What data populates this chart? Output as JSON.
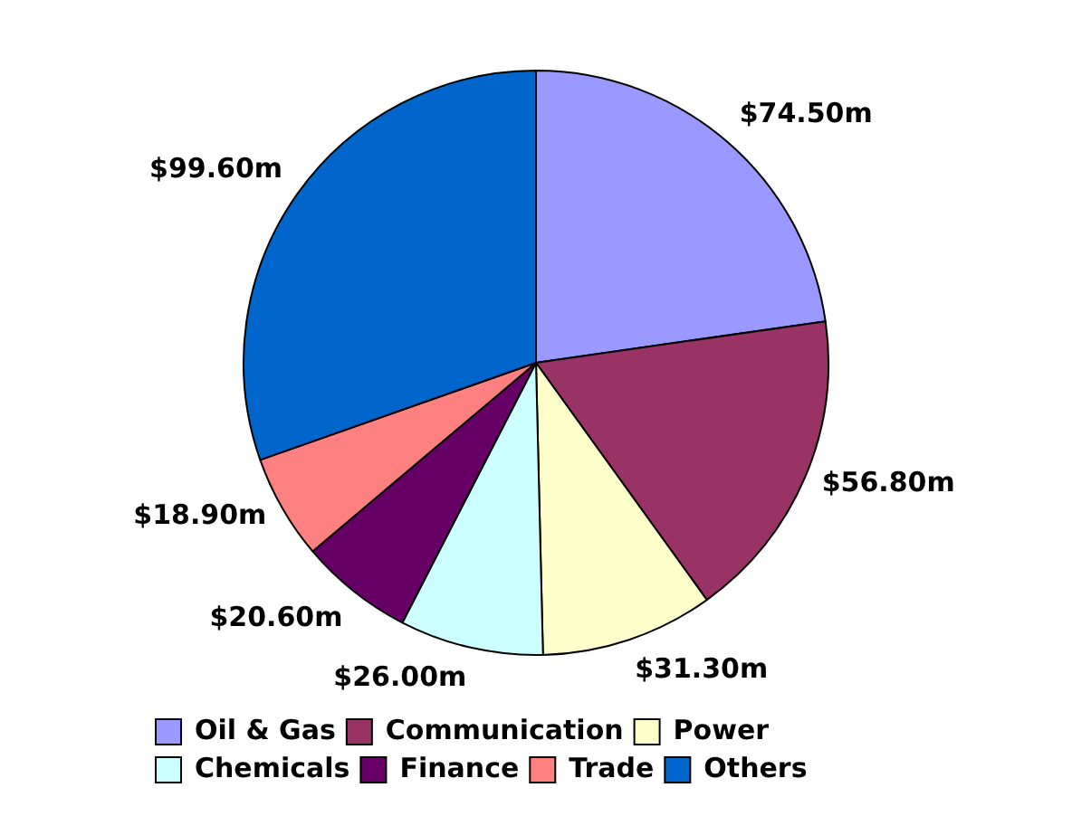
{
  "chart_data": {
    "type": "pie",
    "categories": [
      "Oil & Gas",
      "Communication",
      "Power",
      "Chemicals",
      "Finance",
      "Trade",
      "Others"
    ],
    "values": [
      74.5,
      56.8,
      31.3,
      26.0,
      20.6,
      18.9,
      99.6
    ],
    "value_labels": [
      "$74.50m",
      "$56.80m",
      "$31.30m",
      "$26.00m",
      "$20.60m",
      "$18.90m",
      "$99.60m"
    ],
    "colors": [
      "#9999ff",
      "#993366",
      "#ffffcc",
      "#ccffff",
      "#660066",
      "#ff8080",
      "#0066cc"
    ],
    "legend": "bottom"
  }
}
